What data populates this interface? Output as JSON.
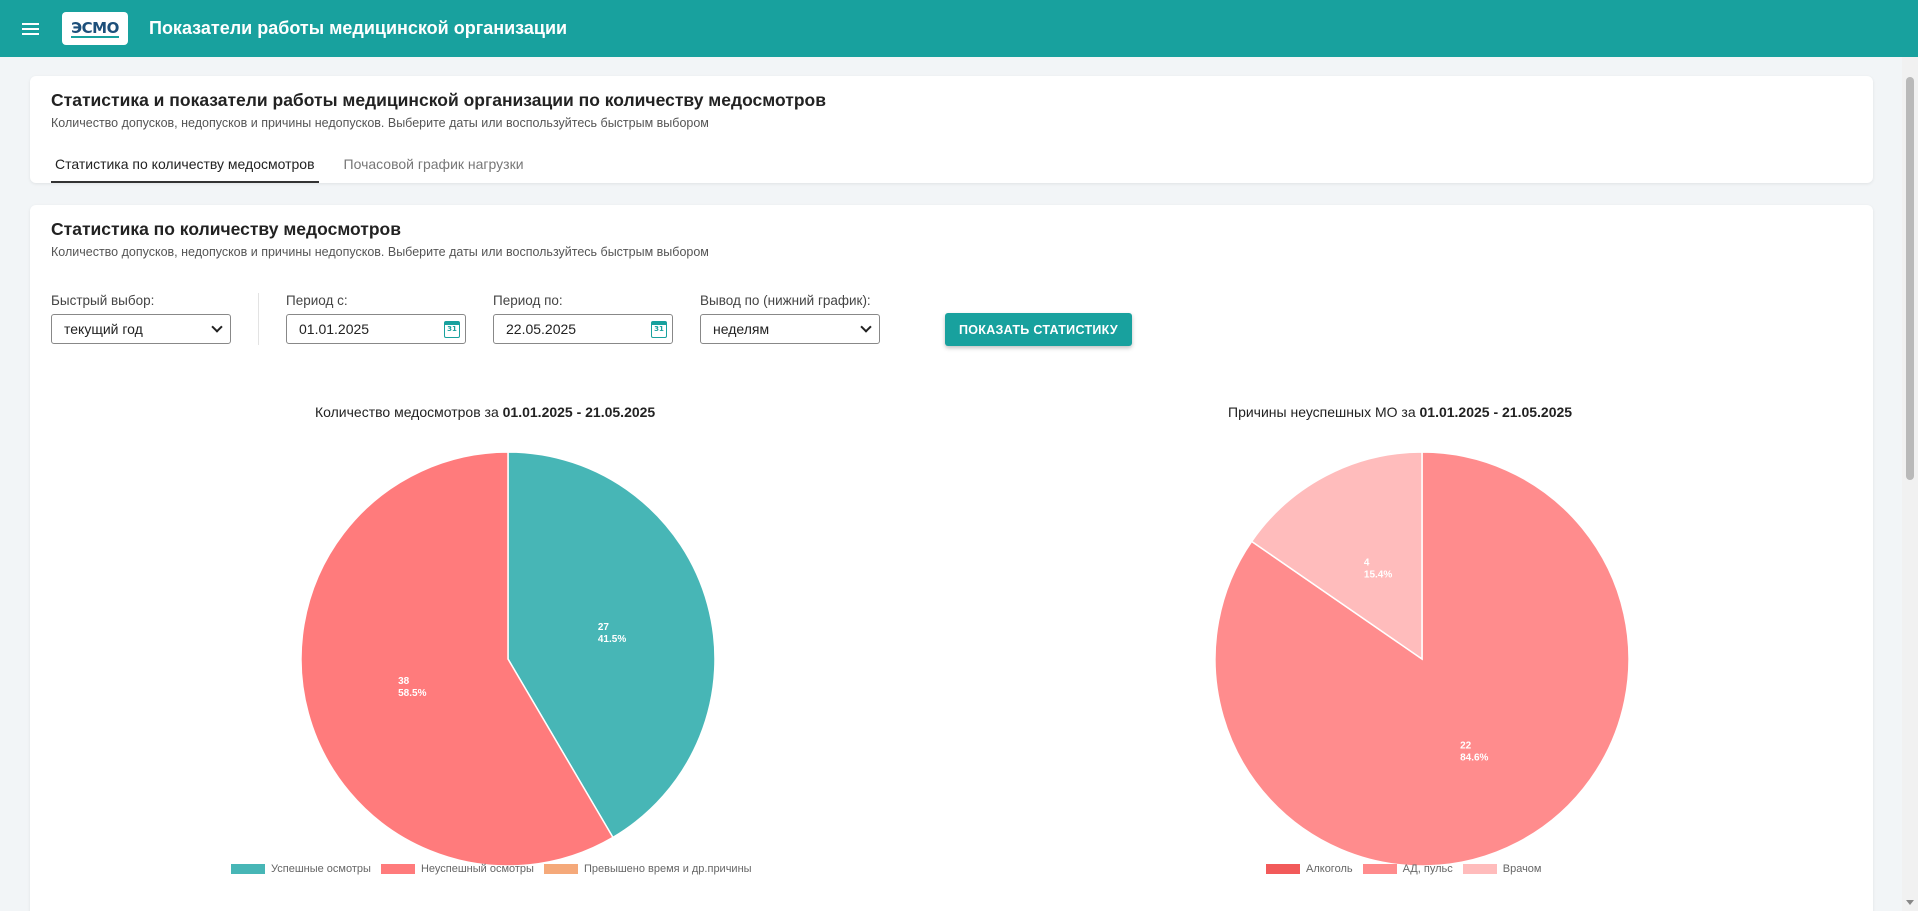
{
  "header": {
    "logo_text": "ЭСМО",
    "title": "Показатели работы медицинской организации"
  },
  "card1": {
    "title": "Статистика и показатели работы медицинской организации по количеству медосмотров",
    "subtitle": "Количество допусков, недопусков и причины недопусков. Выберите даты или воспользуйтесь быстрым выбором",
    "tabs": [
      {
        "label": "Статистика по количеству медосмотров",
        "active": true
      },
      {
        "label": "Почасовой график нагрузки",
        "active": false
      }
    ]
  },
  "card2": {
    "title": "Статистика по количеству медосмотров",
    "subtitle": "Количество допусков, недопусков и причины недопусков. Выберите даты или воспользуйтесь быстрым выбором",
    "filters": {
      "quick_label": "Быстрый выбор:",
      "quick_value": "текущий год",
      "from_label": "Период с:",
      "from_value": "01.01.2025",
      "to_label": "Период по:",
      "to_value": "22.05.2025",
      "output_label": "Вывод по (нижний график):",
      "output_value": "неделям",
      "calendar_icon_text": "31"
    },
    "show_button": "ПОКАЗАТЬ СТАТИСТИКУ"
  },
  "chart_data": [
    {
      "type": "pie",
      "title_prefix": "Количество медосмотров за ",
      "title_period": "01.01.2025 - 21.05.2025",
      "slices": [
        {
          "name": "Успешные осмотры",
          "value": 27,
          "percent": "41.5%",
          "color": "#47b6b6"
        },
        {
          "name": "Неуспешный осмотры",
          "value": 38,
          "percent": "58.5%",
          "color": "#ff7b7c"
        },
        {
          "name": "Превышено время и др.причины",
          "value": 0,
          "percent": "0%",
          "color": "#f5a97a"
        }
      ]
    },
    {
      "type": "pie",
      "title_prefix": "Причины неуспешных МО за ",
      "title_period": "01.01.2025 - 21.05.2025",
      "slices": [
        {
          "name": "Алкоголь",
          "value": 0,
          "percent": "0%",
          "color": "#f25a5a"
        },
        {
          "name": "АД, пульс",
          "value": 22,
          "percent": "84.6%",
          "color": "#ff8c8d"
        },
        {
          "name": "Врачом",
          "value": 4,
          "percent": "15.4%",
          "color": "#ffbcbc"
        }
      ]
    }
  ]
}
